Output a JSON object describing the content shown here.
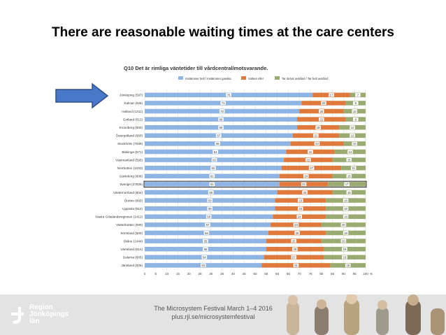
{
  "slide": {
    "title": "There are reasonable waiting times at the care centers"
  },
  "footer": {
    "line1": "The Microsystem Festival March 1–4 2016",
    "line2": "plus.rjl.se/microsystemfestival",
    "logo_lines": [
      "Region",
      "Jönköpings",
      "län"
    ]
  },
  "colors": {
    "agree": "#8db4e2",
    "neutral": "#e07a3c",
    "disagree": "#9aab72",
    "arrow": "#4a78c8",
    "highlight_border": "#222222"
  },
  "chart_data": {
    "type": "bar",
    "orientation": "horizontal",
    "stacked": true,
    "title": "Q10 Det är rimliga väntetider till vårdcentral/motsvarande.",
    "legend": [
      "Instämmer helt / Instämmer ganska",
      "Varken eller",
      "Tar delvis avstånd / Tar helt avstånd"
    ],
    "legend_position": "top",
    "categories": [
      "Jönköping (597)",
      "Kalmar (626)",
      "Halland (1311)",
      "Gotland (612)",
      "Kronoberg (600)",
      "Östergötland (660)",
      "Stockholm (7039)",
      "Blekinge (571)",
      "Västmanland (595)",
      "Norrbotten (1033)",
      "Gävleborg (606)",
      "Sverige (27936)",
      "Västernorrland (604)",
      "Örebro (665)",
      "Uppsala (614)",
      "Västra Götalandsregionen (1412)",
      "Västerbotten (590)",
      "Sörmland (600)",
      "Skåne (1444)",
      "Värmland (614)",
      "Dalarna (605)",
      "Jämtland (506)"
    ],
    "highlight_category": "Sverige (27936)",
    "series": [
      {
        "name": "Instämmer helt / Instämmer ganska",
        "values": [
          76,
          71,
          70,
          69,
          69,
          67,
          66,
          64,
          63,
          62,
          61,
          61,
          60,
          59,
          59,
          58,
          57,
          56,
          55,
          55,
          54,
          53
        ]
      },
      {
        "name": "Varken eller",
        "values": [
          17,
          20,
          20,
          22,
          19,
          21,
          24,
          22,
          22,
          27,
          24,
          22,
          25,
          23,
          23,
          24,
          23,
          26,
          25,
          26,
          27,
          31
        ]
      },
      {
        "name": "Tar delvis avstånd / Tar helt avstånd",
        "values": [
          7,
          9,
          10,
          9,
          12,
          12,
          10,
          14,
          15,
          11,
          15,
          17,
          15,
          18,
          18,
          18,
          20,
          18,
          20,
          19,
          19,
          16
        ]
      }
    ],
    "xlim": [
      0,
      100
    ],
    "xticks": [
      0,
      5,
      10,
      15,
      20,
      25,
      30,
      35,
      40,
      45,
      50,
      55,
      60,
      65,
      70,
      75,
      80,
      85,
      90,
      95,
      100
    ],
    "x_unit": "%",
    "grid": true
  }
}
